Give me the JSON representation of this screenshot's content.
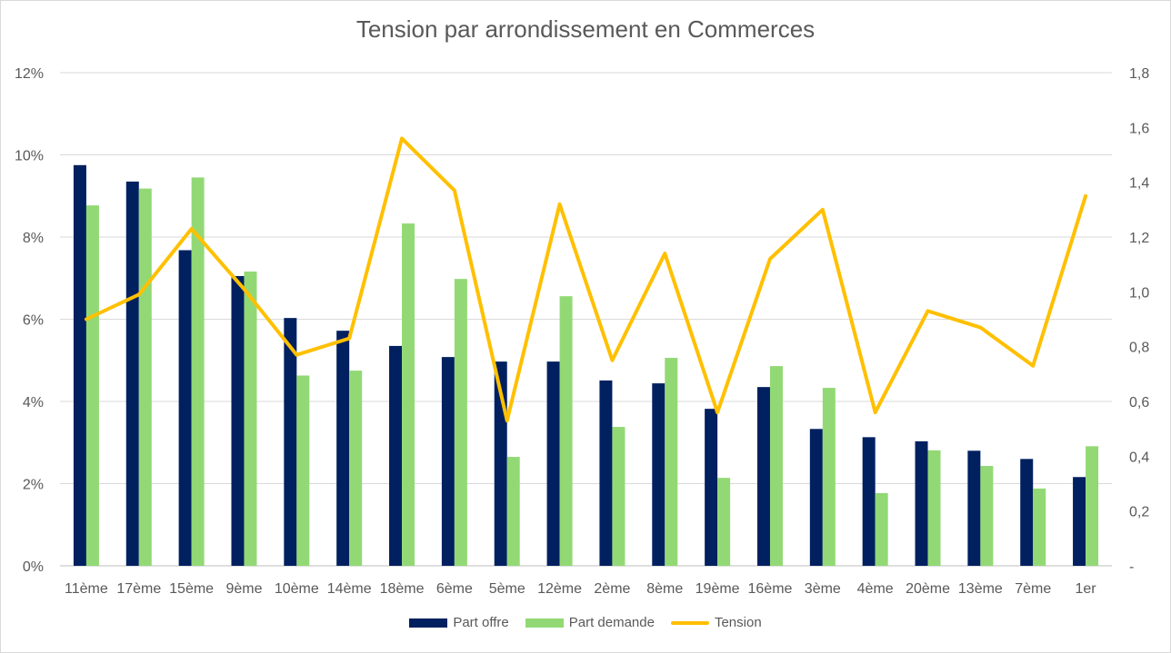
{
  "chart_data": {
    "type": "bar",
    "title": "Tension par arrondissement en Commerces",
    "categories": [
      "11ème",
      "17ème",
      "15ème",
      "9ème",
      "10ème",
      "14ème",
      "18ème",
      "6ème",
      "5ème",
      "12ème",
      "2ème",
      "8ème",
      "19ème",
      "16ème",
      "3ème",
      "4ème",
      "20ème",
      "13ème",
      "7ème",
      "1er"
    ],
    "series": [
      {
        "name": "Part offre",
        "type": "bar",
        "axis": "left",
        "color": "#002060",
        "values": [
          9.75,
          9.35,
          7.68,
          7.05,
          6.03,
          5.72,
          5.35,
          5.08,
          4.97,
          4.97,
          4.51,
          4.44,
          3.82,
          4.35,
          3.33,
          3.13,
          3.03,
          2.8,
          2.6,
          2.16
        ]
      },
      {
        "name": "Part demande",
        "type": "bar",
        "axis": "left",
        "color": "#92D975",
        "values": [
          8.77,
          9.18,
          9.45,
          7.16,
          4.63,
          4.75,
          8.33,
          6.98,
          2.65,
          6.56,
          3.38,
          5.06,
          2.14,
          4.86,
          4.33,
          1.77,
          2.81,
          2.43,
          1.88,
          2.91
        ]
      },
      {
        "name": "Tension",
        "type": "line",
        "axis": "right",
        "color": "#FFC000",
        "values": [
          0.9,
          0.99,
          1.23,
          1.01,
          0.77,
          0.83,
          1.56,
          1.37,
          0.53,
          1.32,
          0.75,
          1.14,
          0.56,
          1.12,
          1.3,
          0.56,
          0.93,
          0.87,
          0.73,
          1.35
        ]
      }
    ],
    "y_left": {
      "min": 0,
      "max": 12,
      "ticks": [
        0,
        2,
        4,
        6,
        8,
        10,
        12
      ],
      "tick_labels": [
        "0%",
        "2%",
        "4%",
        "6%",
        "8%",
        "10%",
        "12%"
      ]
    },
    "y_right": {
      "min": 0,
      "max": 1.8,
      "ticks": [
        0,
        0.2,
        0.4,
        0.6,
        0.8,
        1.0,
        1.2,
        1.4,
        1.6,
        1.8
      ],
      "tick_labels": [
        "-",
        "0,2",
        "0,4",
        "0,6",
        "0,8",
        "1,0",
        "1,2",
        "1,4",
        "1,6",
        "1,8"
      ]
    },
    "grid": true,
    "legend_position": "bottom"
  }
}
